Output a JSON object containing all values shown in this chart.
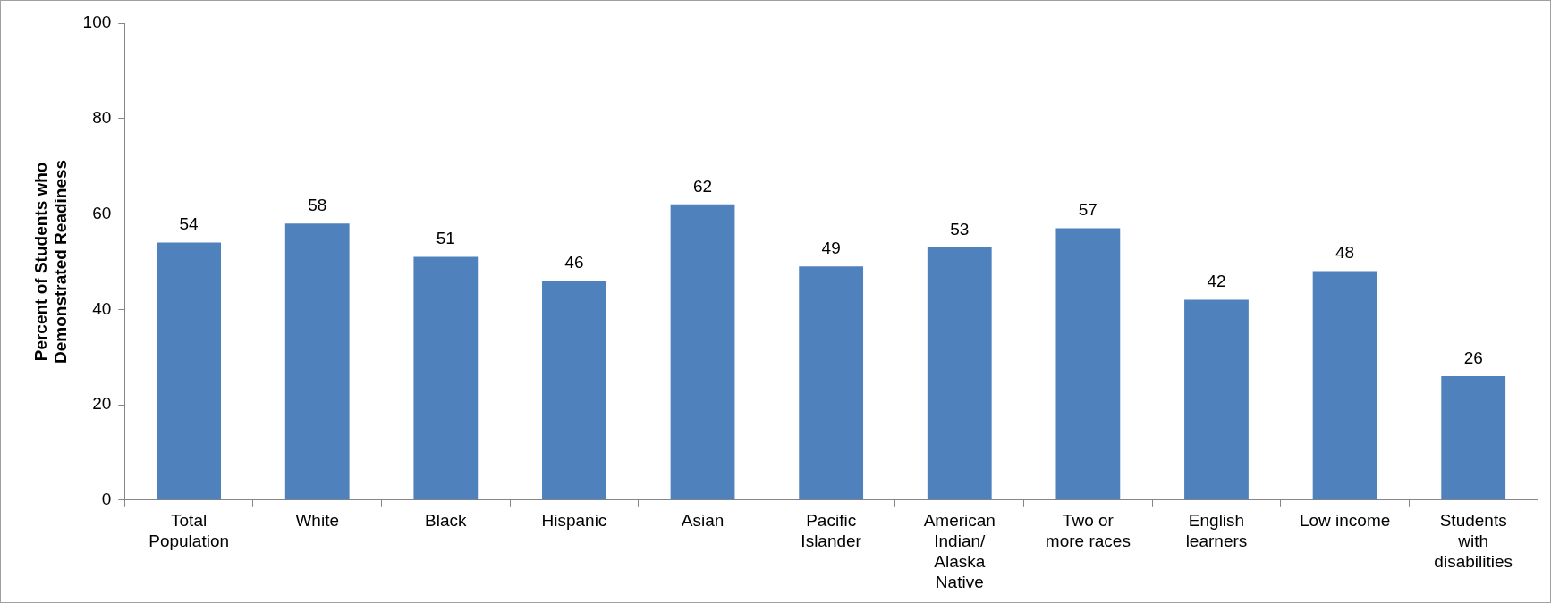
{
  "chart_data": {
    "type": "bar",
    "ylabel": "Percent of Students who Demonstrated Readiness",
    "categories": [
      "Total Population",
      "White",
      "Black",
      "Hispanic",
      "Asian",
      "Pacific Islander",
      "American Indian/ Alaska Native",
      "Two or more races",
      "English learners",
      "Low income",
      "Students with disabilities"
    ],
    "values": [
      54,
      58,
      51,
      46,
      62,
      49,
      53,
      57,
      42,
      48,
      26
    ],
    "color": "#4f81bd",
    "ylim": [
      0,
      100
    ],
    "yticks": [
      0,
      20,
      40,
      60,
      80,
      100
    ],
    "grid": false,
    "legend": false,
    "data_labels": true
  }
}
